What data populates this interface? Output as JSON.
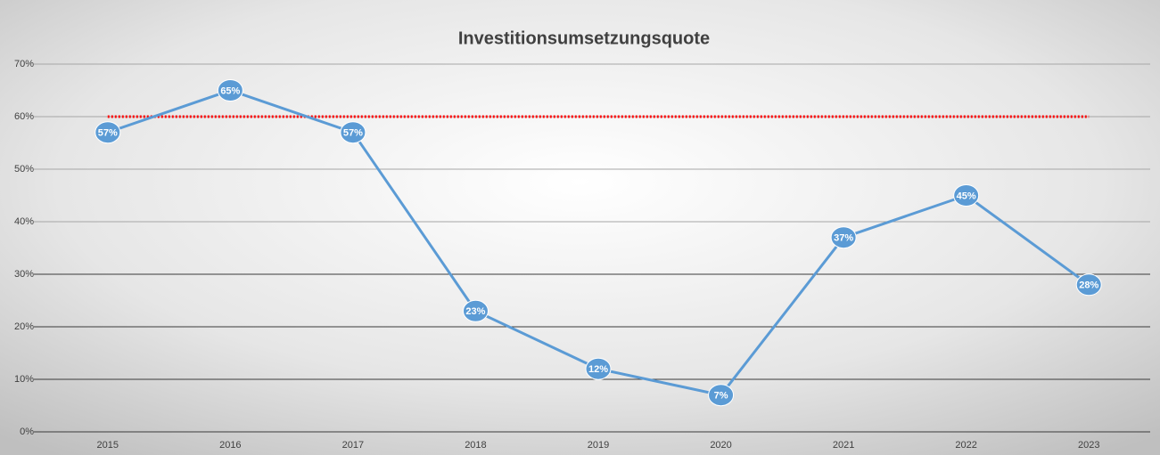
{
  "chart_data": {
    "type": "line",
    "title": "Investitionsumsetzungsquote",
    "categories": [
      "2015",
      "2016",
      "2017",
      "2018",
      "2019",
      "2020",
      "2021",
      "2022",
      "2023"
    ],
    "series": [
      {
        "color": "#5b9bd5",
        "values": [
          57,
          65,
          57,
          23,
          12,
          7,
          37,
          45,
          28
        ],
        "value_labels": [
          "57%",
          "65%",
          "57%",
          "23%",
          "12%",
          "7%",
          "37%",
          "45%",
          "28%"
        ],
        "markers": true
      },
      {
        "color": "#ff0000",
        "values": [
          60,
          60,
          60,
          60,
          60,
          60,
          60,
          60,
          60
        ],
        "dotted": true
      }
    ],
    "ylim": [
      0,
      70
    ],
    "yticks": [
      {
        "value": 0,
        "label": "0%"
      },
      {
        "value": 10,
        "label": "10%"
      },
      {
        "value": 20,
        "label": "20%"
      },
      {
        "value": 30,
        "label": "30%"
      },
      {
        "value": 40,
        "label": "40%"
      },
      {
        "value": 50,
        "label": "50%"
      },
      {
        "value": 60,
        "label": "60%"
      },
      {
        "value": 70,
        "label": "70%"
      }
    ],
    "grid": true
  }
}
